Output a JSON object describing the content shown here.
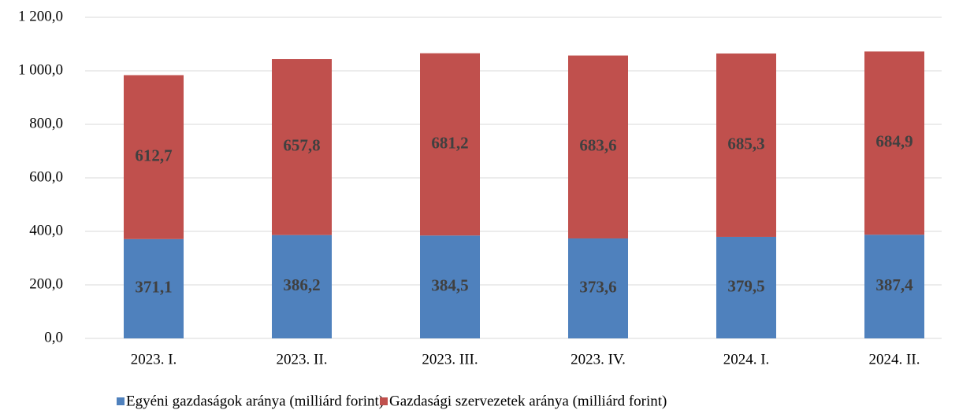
{
  "chart_data": {
    "type": "stacked_bar",
    "categories": [
      "2023. I.",
      "2023. II.",
      "2023. III.",
      "2023. IV.",
      "2024. I.",
      "2024. II."
    ],
    "series": [
      {
        "name": "Egyéni gazdaságok aránya (milliárd forint)",
        "color": "#4f81bd",
        "values": [
          371.1,
          386.2,
          384.5,
          373.6,
          379.5,
          387.4
        ],
        "value_labels": [
          "371,1",
          "386,2",
          "384,5",
          "373,6",
          "379,5",
          "387,4"
        ]
      },
      {
        "name": "Gazdasági szervezetek aránya (milliárd forint)",
        "color": "#c0504d",
        "values": [
          612.7,
          657.8,
          681.2,
          683.6,
          685.3,
          684.9
        ],
        "value_labels": [
          "612,7",
          "657,8",
          "681,2",
          "683,6",
          "685,3",
          "684,9"
        ]
      }
    ],
    "ylim": [
      0,
      1200
    ],
    "yticks": [
      {
        "value": 0,
        "label": "0,0"
      },
      {
        "value": 200,
        "label": "200,0"
      },
      {
        "value": 400,
        "label": "400,0"
      },
      {
        "value": 600,
        "label": "600,0"
      },
      {
        "value": 800,
        "label": "800,0"
      },
      {
        "value": 1000,
        "label": "1 000,0"
      },
      {
        "value": 1200,
        "label": "1 200,0"
      }
    ],
    "grid": true
  }
}
